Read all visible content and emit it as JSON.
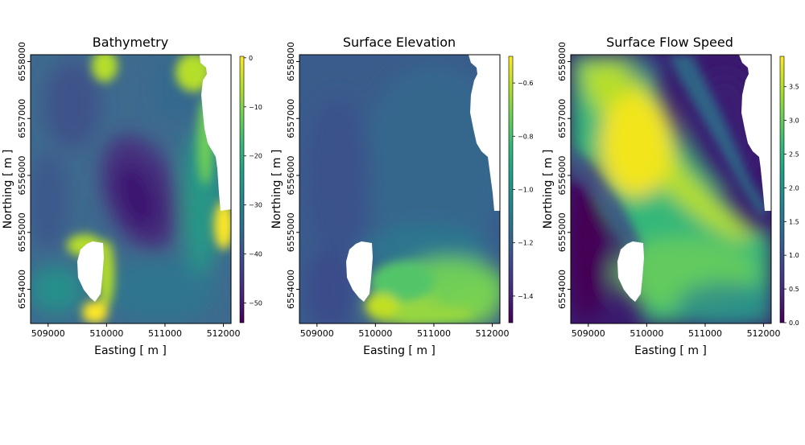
{
  "chart_data": [
    {
      "type": "heatmap",
      "title": "Bathymetry",
      "xlabel": "Easting  [ m ]",
      "ylabel": "Northing  [ m ]",
      "xlim": [
        508700,
        512130
      ],
      "ylim": [
        6553400,
        6558120
      ],
      "xticks": [
        509000,
        510000,
        511000,
        512000
      ],
      "xtick_labels": [
        "509000",
        "510000",
        "511000",
        "512000"
      ],
      "yticks": [
        6554000,
        6555000,
        6556000,
        6557000,
        6558000
      ],
      "ytick_labels": [
        "6554000",
        "6555000",
        "6556000",
        "6557000",
        "6558000"
      ],
      "colormap": "viridis",
      "colorbar": {
        "range": [
          -54,
          0.3
        ],
        "ticks": [
          0,
          -10,
          -20,
          -30,
          -40,
          -50
        ],
        "tick_labels": [
          "0",
          "−10",
          "−20",
          "−30",
          "−40",
          "−50"
        ]
      },
      "grid": false
    },
    {
      "type": "heatmap",
      "title": "Surface Elevation",
      "xlabel": "Easting  [ m ]",
      "ylabel": "Northing  [ m ]",
      "xlim": [
        508700,
        512130
      ],
      "ylim": [
        6553400,
        6558120
      ],
      "xticks": [
        509000,
        510000,
        511000,
        512000
      ],
      "xtick_labels": [
        "509000",
        "510000",
        "511000",
        "512000"
      ],
      "yticks": [
        6554000,
        6555000,
        6556000,
        6557000,
        6558000
      ],
      "ytick_labels": [
        "6554000",
        "6555000",
        "6556000",
        "6557000",
        "6558000"
      ],
      "colormap": "viridis",
      "colorbar": {
        "range": [
          -1.5,
          -0.5
        ],
        "ticks": [
          -0.6,
          -0.8,
          -1.0,
          -1.2,
          -1.4
        ],
        "tick_labels": [
          "−0.6",
          "−0.8",
          "−1.0",
          "−1.2",
          "−1.4"
        ]
      },
      "grid": false
    },
    {
      "type": "heatmap",
      "title": "Surface Flow Speed",
      "xlabel": "Easting  [ m ]",
      "ylabel": "Northing  [ m ]",
      "xlim": [
        508700,
        512130
      ],
      "ylim": [
        6553400,
        6558120
      ],
      "xticks": [
        509000,
        510000,
        511000,
        512000
      ],
      "xtick_labels": [
        "509000",
        "510000",
        "511000",
        "512000"
      ],
      "yticks": [
        6554000,
        6555000,
        6556000,
        6557000,
        6558000
      ],
      "ytick_labels": [
        "6554000",
        "6555000",
        "6556000",
        "6557000",
        "6558000"
      ],
      "colormap": "viridis",
      "colorbar": {
        "range": [
          0,
          3.95
        ],
        "ticks": [
          0.0,
          0.5,
          1.0,
          1.5,
          2.0,
          2.5,
          3.0,
          3.5
        ],
        "tick_labels": [
          "0.0",
          "0.5",
          "1.0",
          "1.5",
          "2.0",
          "2.5",
          "3.0",
          "3.5"
        ]
      },
      "grid": false
    }
  ],
  "colors": {
    "viridis": [
      "#440154",
      "#482878",
      "#3e4989",
      "#31688e",
      "#26828e",
      "#1f9e89",
      "#35b779",
      "#6ece58",
      "#b5de2b",
      "#fde725"
    ],
    "land": "#ffffff"
  }
}
